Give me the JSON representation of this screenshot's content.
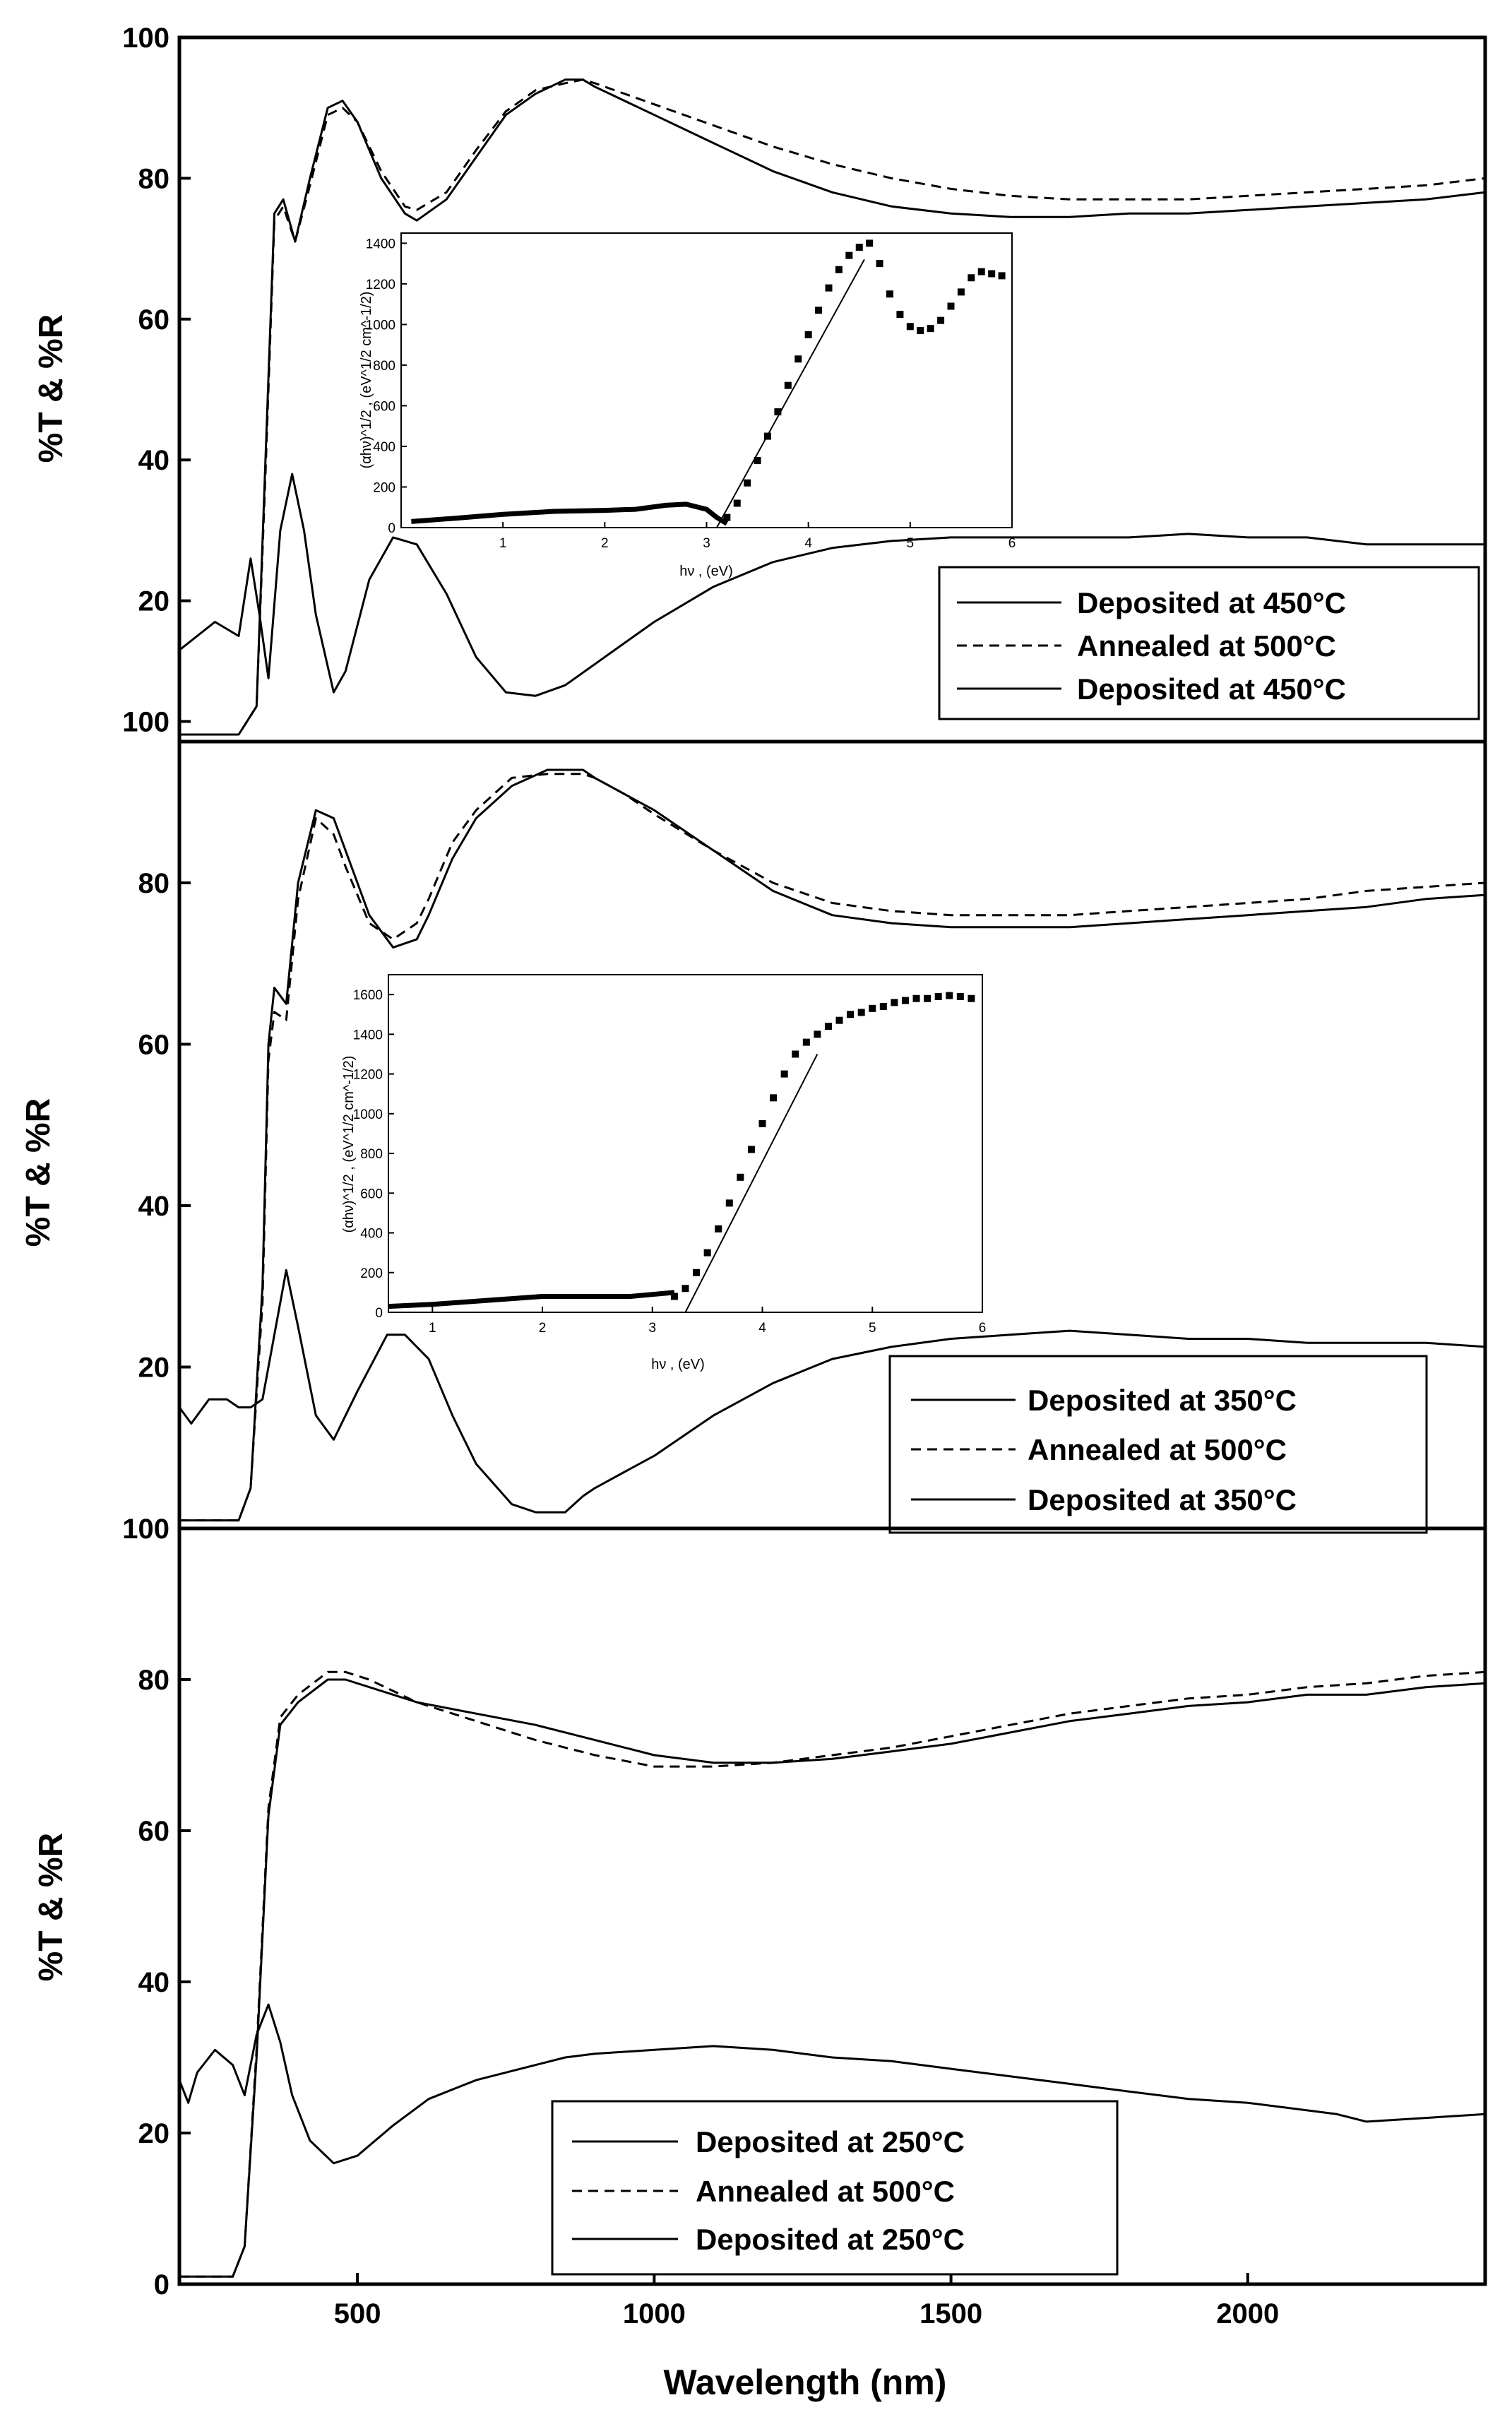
{
  "chart_data": [
    {
      "type": "line",
      "panel": "top",
      "ylabel": "%T & %R",
      "ylim": [
        0,
        100
      ],
      "yticks": [
        "20",
        "40",
        "60",
        "80",
        "100"
      ],
      "xlim": [
        200,
        2400
      ],
      "legend_position": "bottom-right",
      "legend": [
        "Deposited at 450°C",
        "Annealed at 500°C",
        "Deposited at 450°C"
      ],
      "series": [
        {
          "name": "Deposited at 450°C",
          "style": "solid",
          "role": "transmittance",
          "x": [
            200,
            300,
            330,
            345,
            360,
            375,
            395,
            420,
            450,
            475,
            500,
            540,
            580,
            600,
            650,
            700,
            750,
            800,
            850,
            880,
            900,
            1000,
            1100,
            1200,
            1300,
            1400,
            1500,
            1600,
            1700,
            1800,
            1900,
            2000,
            2100,
            2200,
            2300,
            2400
          ],
          "y": [
            1,
            1,
            5,
            40,
            75,
            77,
            71,
            80,
            90,
            91,
            88,
            80,
            75,
            74,
            77,
            83,
            89,
            92,
            94,
            94,
            93,
            89,
            85,
            81,
            78,
            76,
            75,
            74.5,
            74.5,
            75,
            75,
            75.5,
            76,
            76.5,
            77,
            78
          ]
        },
        {
          "name": "Annealed at 500°C",
          "style": "dashed",
          "role": "transmittance",
          "x": [
            200,
            300,
            330,
            345,
            360,
            375,
            395,
            420,
            450,
            475,
            500,
            540,
            580,
            600,
            650,
            700,
            750,
            800,
            850,
            880,
            900,
            1000,
            1100,
            1200,
            1300,
            1400,
            1500,
            1600,
            1700,
            1800,
            1900,
            2000,
            2100,
            2200,
            2300,
            2400
          ],
          "y": [
            1,
            1,
            5,
            38,
            74,
            76,
            71,
            79,
            89,
            90,
            88,
            81,
            76,
            75.5,
            78,
            84,
            89.5,
            92.5,
            93.5,
            94,
            93.5,
            90.5,
            87.5,
            84.5,
            82,
            80,
            78.5,
            77.5,
            77,
            77,
            77,
            77.5,
            78,
            78.5,
            79,
            80
          ]
        },
        {
          "name": "Deposited at 450°C",
          "style": "solid",
          "role": "reflectance",
          "x": [
            200,
            230,
            260,
            280,
            300,
            320,
            335,
            350,
            370,
            390,
            410,
            430,
            460,
            480,
            520,
            560,
            600,
            650,
            700,
            750,
            800,
            850,
            900,
            950,
            1000,
            1100,
            1200,
            1300,
            1400,
            1500,
            1600,
            1700,
            1800,
            1900,
            2000,
            2100,
            2200,
            2300,
            2400
          ],
          "y": [
            13,
            15,
            17,
            16,
            15,
            26,
            18,
            9,
            30,
            38,
            30,
            18,
            7,
            10,
            23,
            29,
            28,
            21,
            12,
            7,
            6.5,
            8,
            11,
            14,
            17,
            22,
            25.5,
            27.5,
            28.5,
            29,
            29,
            29,
            29,
            29.5,
            29,
            29,
            28,
            28,
            28
          ]
        }
      ],
      "inset": {
        "xlabel": "hν , (eV)",
        "ylabel": "(αhν)^1/2 , (eV^1/2 cm^-1/2)",
        "xlim": [
          0,
          6
        ],
        "ylim": [
          0,
          1450
        ],
        "xticks": [
          "1",
          "2",
          "3",
          "4",
          "5",
          "6"
        ],
        "yticks": [
          "0",
          "200",
          "400",
          "600",
          "800",
          "1000",
          "1200",
          "1400"
        ],
        "points_x": [
          3.2,
          3.3,
          3.4,
          3.5,
          3.6,
          3.7,
          3.8,
          3.9,
          4.0,
          4.1,
          4.2,
          4.3,
          4.4,
          4.5,
          4.6,
          4.7,
          4.8,
          4.9,
          5.0,
          5.1,
          5.2,
          5.3,
          5.4,
          5.5,
          5.6,
          5.7,
          5.8,
          5.9
        ],
        "points_y": [
          50,
          120,
          220,
          330,
          450,
          570,
          700,
          830,
          950,
          1070,
          1180,
          1270,
          1340,
          1380,
          1400,
          1300,
          1150,
          1050,
          990,
          970,
          980,
          1020,
          1090,
          1160,
          1230,
          1260,
          1250,
          1240
        ],
        "baseline_x": [
          0.1,
          0.5,
          1.0,
          1.5,
          2.0,
          2.3,
          2.6,
          2.8,
          3.0,
          3.1,
          3.2
        ],
        "baseline_y": [
          30,
          45,
          65,
          80,
          85,
          90,
          110,
          115,
          90,
          50,
          20
        ],
        "fit_x": [
          3.1,
          4.55
        ],
        "fit_y": [
          0,
          1320
        ]
      }
    },
    {
      "type": "line",
      "panel": "middle",
      "ylabel": "%T & %R",
      "ylim": [
        0,
        97.5
      ],
      "yticks": [
        "20",
        "40",
        "60",
        "80",
        "100"
      ],
      "xlim": [
        200,
        2400
      ],
      "legend_position": "bottom-right",
      "legend": [
        "Deposited at 350°C",
        "Annealed at 500°C",
        "Deposited at 350°C"
      ],
      "series": [
        {
          "name": "Deposited at 350°C",
          "style": "solid",
          "role": "transmittance",
          "x": [
            200,
            300,
            320,
            340,
            350,
            360,
            380,
            400,
            430,
            460,
            480,
            520,
            560,
            600,
            620,
            660,
            700,
            760,
            820,
            880,
            900,
            950,
            1000,
            1100,
            1200,
            1300,
            1400,
            1500,
            1600,
            1700,
            1800,
            1900,
            2000,
            2100,
            2200,
            2300,
            2400
          ],
          "y": [
            1,
            1,
            5,
            30,
            60,
            67,
            65,
            80,
            89,
            88,
            84,
            76,
            72,
            73,
            76,
            83,
            88,
            92,
            94,
            94,
            93,
            91,
            89,
            84,
            79,
            76,
            75,
            74.5,
            74.5,
            74.5,
            75,
            75.5,
            76,
            76.5,
            77,
            78,
            78.5
          ]
        },
        {
          "name": "Annealed at 500°C",
          "style": "dashed",
          "role": "transmittance",
          "x": [
            200,
            300,
            320,
            340,
            350,
            360,
            380,
            400,
            430,
            460,
            480,
            520,
            560,
            600,
            620,
            660,
            700,
            760,
            820,
            880,
            900,
            950,
            1000,
            1100,
            1200,
            1300,
            1400,
            1500,
            1600,
            1700,
            1800,
            1900,
            2000,
            2100,
            2200,
            2300,
            2400
          ],
          "y": [
            1,
            1,
            5,
            28,
            58,
            64,
            63,
            78,
            88,
            86,
            82,
            75,
            73,
            75,
            78,
            85,
            89,
            93,
            93.5,
            93.5,
            93,
            91,
            88.5,
            84,
            80,
            77.5,
            76.5,
            76,
            76,
            76,
            76.5,
            77,
            77.5,
            78,
            79,
            79.5,
            80
          ]
        },
        {
          "name": "Deposited at 350°C",
          "style": "solid",
          "role": "reflectance",
          "x": [
            200,
            220,
            250,
            280,
            300,
            320,
            340,
            360,
            380,
            400,
            430,
            460,
            500,
            550,
            580,
            620,
            660,
            700,
            760,
            800,
            850,
            880,
            900,
            950,
            1000,
            1100,
            1200,
            1300,
            1400,
            1500,
            1600,
            1700,
            1800,
            1900,
            2000,
            2100,
            2200,
            2300,
            2400
          ],
          "y": [
            15,
            13,
            16,
            16,
            15,
            15,
            16,
            24,
            32,
            25,
            14,
            11,
            17,
            24,
            24,
            21,
            14,
            8,
            3,
            2,
            2,
            4,
            5,
            7,
            9,
            14,
            18,
            21,
            22.5,
            23.5,
            24,
            24.5,
            24,
            23.5,
            23.5,
            23,
            23,
            23,
            22.5
          ]
        }
      ],
      "inset": {
        "xlabel": "hν , (eV)",
        "ylabel": "(αhν)^1/2 , (eV^1/2 cm^-1/2)",
        "xlim": [
          0.6,
          6
        ],
        "ylim": [
          0,
          1700
        ],
        "xticks": [
          "1",
          "2",
          "3",
          "4",
          "5",
          "6"
        ],
        "yticks": [
          "0",
          "200",
          "400",
          "600",
          "800",
          "1000",
          "1200",
          "1400",
          "1600"
        ],
        "points_x": [
          3.2,
          3.3,
          3.4,
          3.5,
          3.6,
          3.7,
          3.8,
          3.9,
          4.0,
          4.1,
          4.2,
          4.3,
          4.4,
          4.5,
          4.6,
          4.7,
          4.8,
          4.9,
          5.0,
          5.1,
          5.2,
          5.3,
          5.4,
          5.5,
          5.6,
          5.7,
          5.8,
          5.9
        ],
        "points_y": [
          80,
          120,
          200,
          300,
          420,
          550,
          680,
          820,
          950,
          1080,
          1200,
          1300,
          1360,
          1400,
          1440,
          1470,
          1500,
          1510,
          1530,
          1540,
          1560,
          1570,
          1580,
          1580,
          1590,
          1595,
          1590,
          1580
        ],
        "baseline_x": [
          0.6,
          1.0,
          1.5,
          2.0,
          2.5,
          2.8,
          3.0,
          3.2
        ],
        "baseline_y": [
          30,
          40,
          60,
          80,
          80,
          80,
          90,
          100
        ],
        "fit_x": [
          3.3,
          4.5
        ],
        "fit_y": [
          0,
          1300
        ]
      }
    },
    {
      "type": "line",
      "panel": "bottom",
      "ylabel": "%T & %R",
      "xlabel": "Wavelength (nm)",
      "ylim": [
        0,
        100
      ],
      "yticks": [
        "0",
        "20",
        "40",
        "60",
        "80",
        "100"
      ],
      "xlim": [
        200,
        2400
      ],
      "xticks": [
        "500",
        "1000",
        "1500",
        "2000"
      ],
      "legend_position": "bottom-center",
      "legend": [
        "Deposited at 250°C",
        "Annealed at 500°C",
        "Deposited at 250°C"
      ],
      "series": [
        {
          "name": "Deposited at 250°C",
          "style": "solid",
          "role": "transmittance",
          "x": [
            200,
            290,
            310,
            330,
            350,
            370,
            400,
            450,
            480,
            520,
            600,
            700,
            800,
            900,
            1000,
            1100,
            1200,
            1300,
            1400,
            1500,
            1600,
            1700,
            1800,
            1900,
            2000,
            2100,
            2200,
            2300,
            2400
          ],
          "y": [
            1,
            1,
            5,
            30,
            62,
            74,
            77,
            80,
            80,
            79,
            77,
            75.5,
            74,
            72,
            70,
            69,
            69,
            69.5,
            70.5,
            71.5,
            73,
            74.5,
            75.5,
            76.5,
            77,
            78,
            78,
            79,
            79.5
          ]
        },
        {
          "name": "Annealed at 500°C",
          "style": "dashed",
          "role": "transmittance",
          "x": [
            200,
            290,
            310,
            330,
            350,
            370,
            400,
            450,
            480,
            520,
            600,
            700,
            800,
            900,
            1000,
            1100,
            1200,
            1300,
            1400,
            1500,
            1600,
            1700,
            1800,
            1900,
            2000,
            2100,
            2200,
            2300,
            2400
          ],
          "y": [
            1,
            1,
            5,
            31,
            63,
            75,
            78,
            81,
            81,
            80,
            77,
            74.5,
            72,
            70,
            68.5,
            68.5,
            69,
            70,
            71,
            72.5,
            74,
            75.5,
            76.5,
            77.5,
            78,
            79,
            79.5,
            80.5,
            81
          ]
        },
        {
          "name": "Deposited at 250°C",
          "style": "solid",
          "role": "reflectance",
          "x": [
            200,
            215,
            230,
            260,
            290,
            310,
            330,
            350,
            370,
            390,
            420,
            460,
            500,
            560,
            620,
            700,
            800,
            850,
            900,
            1000,
            1100,
            1200,
            1300,
            1400,
            1500,
            1600,
            1700,
            1800,
            1900,
            2000,
            2100,
            2150,
            2200,
            2300,
            2400
          ],
          "y": [
            27,
            24,
            28,
            31,
            29,
            25,
            33,
            37,
            32,
            25,
            19,
            16,
            17,
            21,
            24.5,
            27,
            29,
            30,
            30.5,
            31,
            31.5,
            31,
            30,
            29.5,
            28.5,
            27.5,
            26.5,
            25.5,
            24.5,
            24,
            23,
            22.5,
            21.5,
            22,
            22.5
          ]
        }
      ]
    }
  ]
}
